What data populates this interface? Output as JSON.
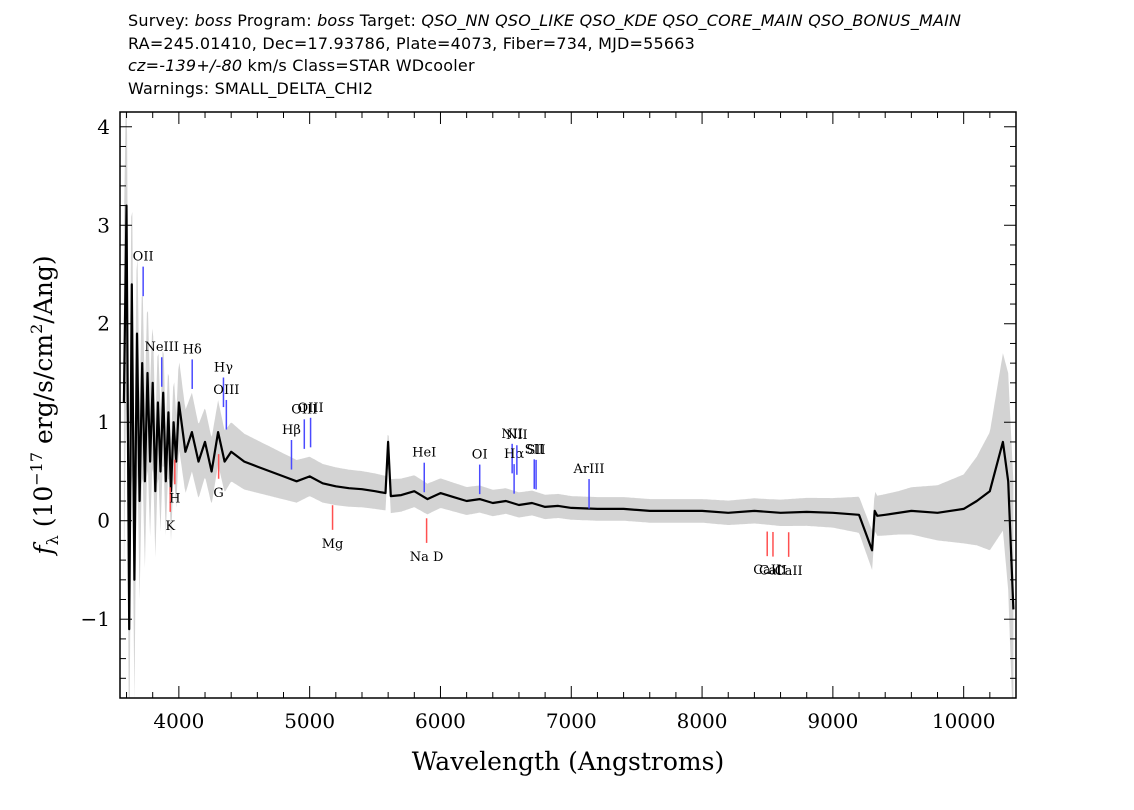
{
  "header": {
    "line1": [
      {
        "t": "Survey: ",
        "i": false
      },
      {
        "t": "boss",
        "i": true
      },
      {
        "t": " Program: ",
        "i": false
      },
      {
        "t": "boss",
        "i": true
      },
      {
        "t": " Target: ",
        "i": false
      },
      {
        "t": "QSO_NN QSO_LIKE QSO_KDE QSO_CORE_MAIN QSO_BONUS_MAIN",
        "i": true
      }
    ],
    "line2": "RA=245.01410, Dec=17.93786, Plate=4073, Fiber=734, MJD=55663",
    "line3": [
      {
        "t": "cz=-139+/-80",
        "i": true
      },
      {
        "t": " km/s Class=STAR WDcooler",
        "i": false
      }
    ],
    "line4": "Warnings: SMALL_DELTA_CHI2"
  },
  "chart_data": {
    "type": "line",
    "xlabel": "Wavelength (Angstroms)",
    "ylabel_parts": {
      "f": "f",
      "sub": "λ",
      "pre": " (10",
      "exp1": "−17",
      "mid": " erg/s/cm",
      "exp2": "2",
      "post": "/Ang)"
    },
    "xlim": [
      3550,
      10400
    ],
    "ylim": [
      -1.8,
      4.15
    ],
    "x_ticks": [
      4000,
      5000,
      6000,
      7000,
      8000,
      9000,
      10000
    ],
    "y_ticks": [
      -1,
      0,
      1,
      2,
      3,
      4
    ],
    "y_tick_labels": [
      "−1",
      "0",
      "1",
      "2",
      "3",
      "4"
    ],
    "series": [
      {
        "role": "flux",
        "color": "#000000",
        "x": [
          3580,
          3600,
          3620,
          3640,
          3660,
          3680,
          3700,
          3720,
          3740,
          3760,
          3780,
          3800,
          3820,
          3840,
          3860,
          3880,
          3900,
          3920,
          3940,
          3960,
          3980,
          4000,
          4050,
          4100,
          4150,
          4200,
          4250,
          4300,
          4350,
          4400,
          4500,
          4600,
          4700,
          4800,
          4900,
          5000,
          5100,
          5200,
          5300,
          5400,
          5500,
          5580,
          5600,
          5620,
          5700,
          5800,
          5900,
          6000,
          6100,
          6200,
          6300,
          6400,
          6500,
          6600,
          6700,
          6800,
          6900,
          7000,
          7200,
          7400,
          7600,
          7800,
          8000,
          8200,
          8400,
          8600,
          8800,
          9000,
          9200,
          9300,
          9320,
          9340,
          9400,
          9600,
          9800,
          10000,
          10100,
          10200,
          10300,
          10340,
          10380
        ],
        "y": [
          1.2,
          3.2,
          -1.1,
          2.4,
          -0.6,
          1.9,
          0.2,
          1.6,
          0.4,
          1.5,
          0.6,
          1.4,
          0.3,
          1.2,
          0.5,
          1.3,
          0.4,
          1.1,
          0.3,
          1.0,
          0.6,
          1.2,
          0.7,
          0.9,
          0.6,
          0.8,
          0.5,
          0.9,
          0.6,
          0.7,
          0.6,
          0.55,
          0.5,
          0.45,
          0.4,
          0.45,
          0.38,
          0.35,
          0.33,
          0.32,
          0.3,
          0.28,
          0.8,
          0.25,
          0.26,
          0.3,
          0.22,
          0.28,
          0.24,
          0.2,
          0.22,
          0.18,
          0.2,
          0.16,
          0.18,
          0.14,
          0.15,
          0.13,
          0.12,
          0.12,
          0.1,
          0.1,
          0.1,
          0.08,
          0.1,
          0.08,
          0.09,
          0.08,
          0.06,
          -0.3,
          0.1,
          0.05,
          0.06,
          0.1,
          0.08,
          0.12,
          0.2,
          0.3,
          0.8,
          0.4,
          -0.9
        ]
      },
      {
        "role": "uncertainty",
        "color": "#c8c8c8",
        "x": [
          3580,
          3600,
          3650,
          3700,
          3800,
          3900,
          4000,
          4200,
          4400,
          4700,
          5000,
          5500,
          6000,
          6500,
          7000,
          7500,
          8000,
          8500,
          9000,
          9300,
          9500,
          9800,
          10000,
          10100,
          10200,
          10300,
          10380
        ],
        "y": [
          1.8,
          1.6,
          1.3,
          1.0,
          0.7,
          0.55,
          0.45,
          0.35,
          0.3,
          0.25,
          0.2,
          0.18,
          0.15,
          0.13,
          0.12,
          0.12,
          0.12,
          0.13,
          0.15,
          0.2,
          0.22,
          0.28,
          0.35,
          0.45,
          0.6,
          0.9,
          1.3
        ]
      }
    ],
    "emission_lines": [
      {
        "label": "OII",
        "x": 3727
      },
      {
        "label": "NeIII",
        "x": 3869
      },
      {
        "label": "Hδ",
        "x": 4102
      },
      {
        "label": "Hγ",
        "x": 4341
      },
      {
        "label": "OIII",
        "x": 4363
      },
      {
        "label": "Hβ",
        "x": 4861
      },
      {
        "label": "OIII",
        "x": 4959
      },
      {
        "label": "OIII",
        "x": 5007
      },
      {
        "label": "HeI",
        "x": 5876
      },
      {
        "label": "OI",
        "x": 6300
      },
      {
        "label": "NII",
        "x": 6548
      },
      {
        "label": "Hα",
        "x": 6563
      },
      {
        "label": "NII",
        "x": 6584
      },
      {
        "label": "SII",
        "x": 6717
      },
      {
        "label": "SII",
        "x": 6731
      },
      {
        "label": "ArIII",
        "x": 7136
      }
    ],
    "absorption_lines": [
      {
        "label": "K",
        "x": 3934
      },
      {
        "label": "H",
        "x": 3969
      },
      {
        "label": "G",
        "x": 4304
      },
      {
        "label": "Mg",
        "x": 5175
      },
      {
        "label": "Na D",
        "x": 5894
      },
      {
        "label": "CaII",
        "x": 8498
      },
      {
        "label": "CaII",
        "x": 8542
      },
      {
        "label": "CaII",
        "x": 8662
      }
    ],
    "colors": {
      "emission": "#4a4aff",
      "absorption": "#ff5050",
      "flux": "#000000",
      "error": "#c8c8c8"
    }
  }
}
